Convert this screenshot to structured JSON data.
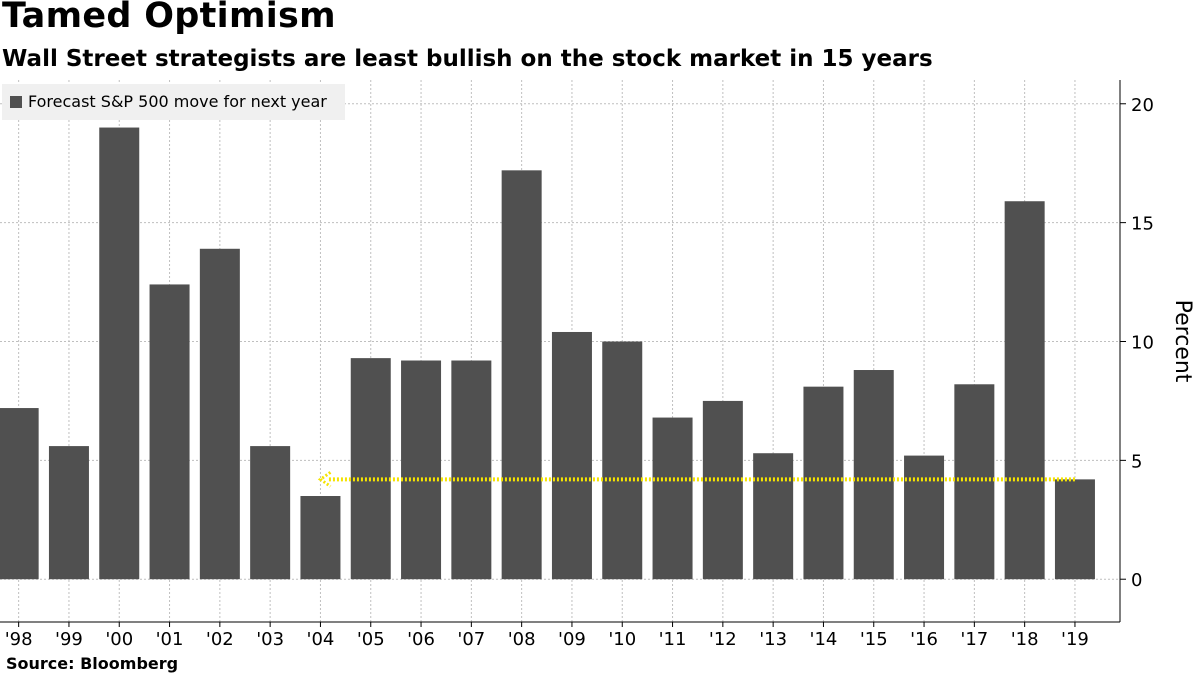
{
  "title": "Tamed Optimism",
  "subtitle": "Wall Street strategists are least bullish on the stock market in 15 years",
  "source": "Source: Bloomberg",
  "colors": {
    "bar": "#505050",
    "annotation": "#f5e400",
    "grid": "#bfbfbf",
    "legend_bg": "#f0f0f0"
  },
  "chart_data": {
    "type": "bar",
    "title": "Tamed Optimism",
    "xlabel": "",
    "ylabel": "Percent",
    "ylim": [
      -1.8,
      21
    ],
    "yticks": [
      0,
      5,
      10,
      15,
      20
    ],
    "grid": true,
    "legend_position": "top-left",
    "legend": [
      "Forecast S&P 500 move for next year"
    ],
    "categories": [
      "'98",
      "'99",
      "'00",
      "'01",
      "'02",
      "'03",
      "'04",
      "'05",
      "'06",
      "'07",
      "'08",
      "'09",
      "'10",
      "'11",
      "'12",
      "'13",
      "'14",
      "'15",
      "'16",
      "'17",
      "'18",
      "'19"
    ],
    "series": [
      {
        "name": "Forecast S&P 500 move for next year",
        "values": [
          7.2,
          5.6,
          19.0,
          12.4,
          13.9,
          5.6,
          3.5,
          9.3,
          9.2,
          9.2,
          17.2,
          10.4,
          10.0,
          6.8,
          7.5,
          5.3,
          8.1,
          8.8,
          5.2,
          8.2,
          15.9,
          4.2
        ]
      }
    ],
    "annotations": [
      {
        "type": "dashed-arrow",
        "y": 4.2,
        "from": "'19",
        "to": "'04",
        "direction": "left"
      }
    ]
  }
}
